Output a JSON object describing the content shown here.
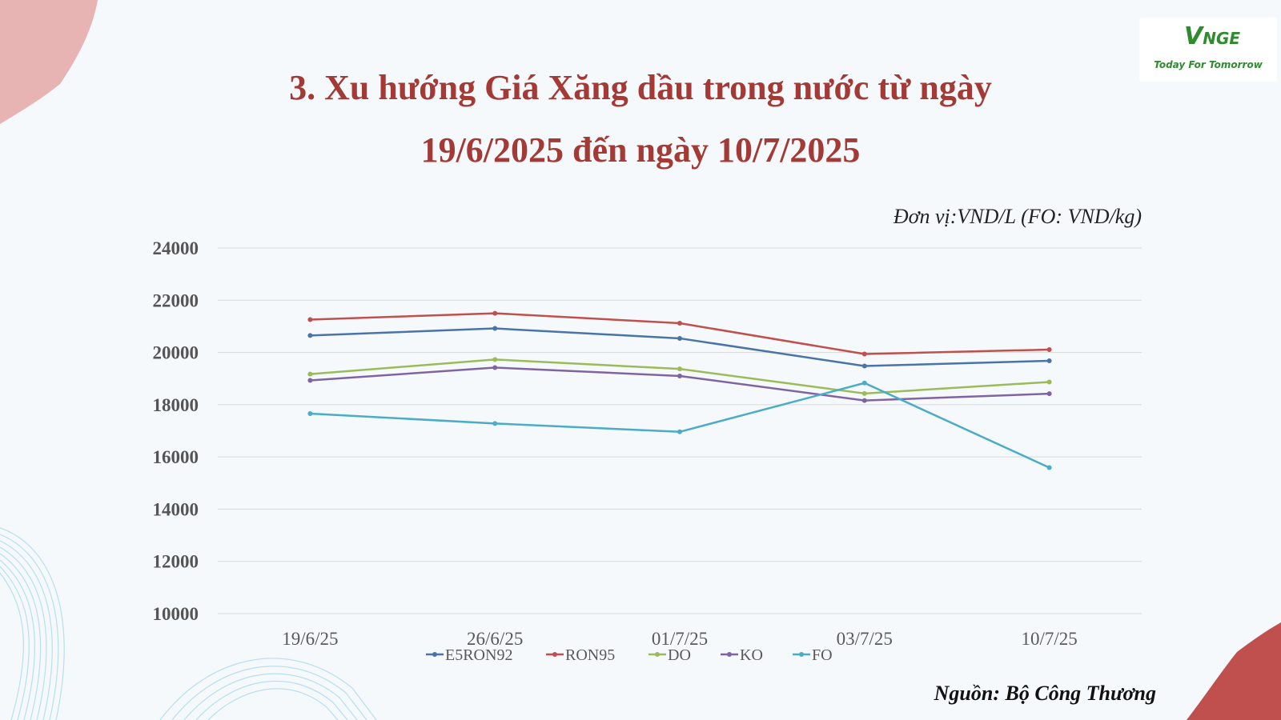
{
  "title": {
    "line1": "3. Xu hướng Giá Xăng dầu trong nước từ ngày",
    "line2": "19/6/2025 đến ngày 10/7/2025"
  },
  "logo": {
    "mark": "V",
    "mark_rest": "NGE",
    "tagline": "Today For Tomorrow"
  },
  "unit_label": "Đơn vị:VND/L (FO: VND/kg)",
  "source_label": "Nguồn: Bộ Công Thương",
  "chart_data": {
    "type": "line",
    "categories": [
      "19/6/25",
      "26/6/25",
      "01/7/25",
      "03/7/25",
      "10/7/25"
    ],
    "series": [
      {
        "name": "E5RON92",
        "color": "#4a73a8",
        "values": [
          20650,
          20920,
          20540,
          19480,
          19680
        ]
      },
      {
        "name": "RON95",
        "color": "#c0504d",
        "values": [
          21260,
          21500,
          21120,
          19940,
          20110
        ]
      },
      {
        "name": "DO",
        "color": "#9bbb59",
        "values": [
          19170,
          19730,
          19370,
          18430,
          18870
        ]
      },
      {
        "name": "KO",
        "color": "#8064a2",
        "values": [
          18930,
          19420,
          19100,
          18160,
          18420
        ]
      },
      {
        "name": "FO",
        "color": "#4bacc6",
        "values": [
          17660,
          17280,
          16960,
          18830,
          15590
        ]
      }
    ],
    "yticks": [
      10000,
      12000,
      14000,
      16000,
      18000,
      20000,
      22000,
      24000
    ],
    "ylim": [
      10000,
      24000
    ],
    "grid": true,
    "legend": "bottom"
  }
}
